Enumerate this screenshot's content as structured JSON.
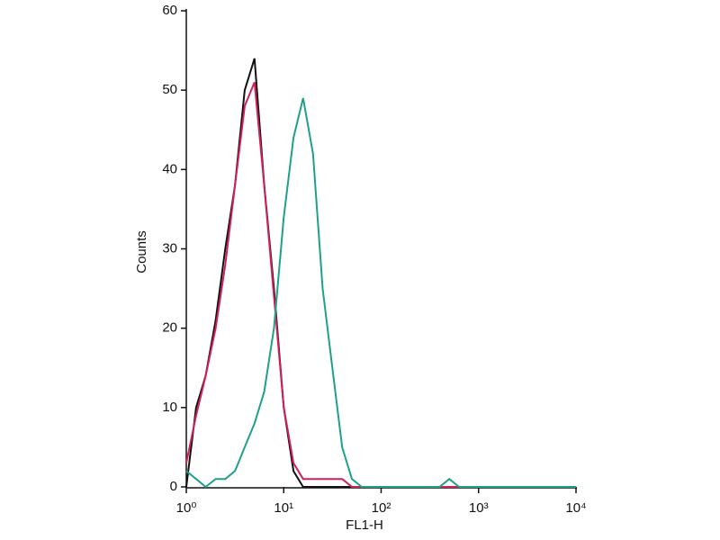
{
  "chart_data": {
    "type": "line",
    "x_label": "FL1-H",
    "y_label": "Counts",
    "x": [
      1,
      1.26,
      1.58,
      2,
      2.51,
      3.16,
      3.98,
      5.01,
      6.31,
      7.94,
      10,
      12.6,
      15.8,
      20,
      25.1,
      31.6,
      39.8,
      50.1,
      63.1,
      79.4,
      100,
      126,
      158,
      200,
      251,
      316,
      398,
      501,
      631,
      794,
      1000,
      1260,
      1580,
      2000,
      2510,
      3160,
      3980,
      5010,
      6310,
      7940,
      10000
    ],
    "series": [
      {
        "color": "#111111",
        "values": [
          0,
          10,
          14,
          21,
          30,
          38,
          50,
          54,
          38,
          25,
          10,
          2,
          0,
          0,
          0,
          0,
          0,
          0,
          0,
          0,
          0,
          0,
          0,
          0,
          0,
          0,
          0,
          0,
          0,
          0,
          0,
          0,
          0,
          0,
          0,
          0,
          0,
          0,
          0,
          0,
          0
        ]
      },
      {
        "color": "#d0205a",
        "values": [
          3,
          9,
          14,
          20,
          28,
          38,
          48,
          51,
          38,
          24,
          10,
          3,
          1,
          1,
          1,
          1,
          1,
          0,
          0,
          0,
          0,
          0,
          0,
          0,
          0,
          0,
          0,
          0,
          0,
          0,
          0,
          0,
          0,
          0,
          0,
          0,
          0,
          0,
          0,
          0,
          0
        ]
      },
      {
        "color": "#1fa08a",
        "values": [
          2,
          1,
          0,
          1,
          1,
          2,
          5,
          8,
          12,
          20,
          34,
          44,
          49,
          42,
          25,
          15,
          5,
          1,
          0,
          0,
          0,
          0,
          0,
          0,
          0,
          0,
          0,
          1,
          0,
          0,
          0,
          0,
          0,
          0,
          0,
          0,
          0,
          0,
          0,
          0,
          0
        ]
      }
    ],
    "xlog": true,
    "xlim": [
      1,
      10000
    ],
    "xticks": [
      {
        "value": 1,
        "label": "10⁰"
      },
      {
        "value": 10,
        "label": "10¹"
      },
      {
        "value": 100,
        "label": "10²"
      },
      {
        "value": 1000,
        "label": "10³"
      },
      {
        "value": 10000,
        "label": "10⁴"
      }
    ],
    "ylim": [
      0,
      60
    ],
    "yticks": [
      0,
      10,
      20,
      30,
      40,
      50,
      60
    ]
  }
}
